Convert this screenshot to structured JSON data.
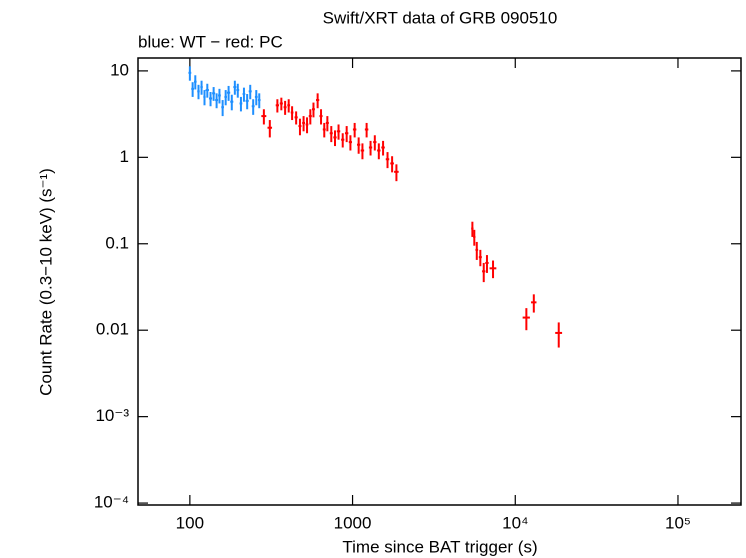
{
  "chart_data": {
    "type": "scatter",
    "title": "Swift/XRT data of GRB 090510",
    "subtitle": "blue: WT − red: PC",
    "x_label": "Time since BAT trigger (s)",
    "y_label": "Count Rate (0.3−10 keV) (s⁻¹)",
    "xscale": "log",
    "yscale": "log",
    "xlim": [
      48,
      244000
    ],
    "ylim": [
      9.5e-05,
      14.1
    ],
    "xticks": [
      100,
      1000,
      {
        "value": 10000,
        "label": "10⁴"
      },
      {
        "value": 100000,
        "label": "10⁵"
      }
    ],
    "yticks": [
      {
        "value": 0.0001,
        "label": "10⁻⁴"
      },
      {
        "value": 0.001,
        "label": "10⁻³"
      },
      0.01,
      0.1,
      1,
      10
    ],
    "series": [
      {
        "name": "WT",
        "color": "#1e8fff",
        "x": [
          100,
          104,
          108,
          113,
          118,
          123,
          128,
          134,
          140,
          146,
          152,
          159,
          166,
          173,
          181,
          189,
          197,
          206,
          215,
          225,
          235,
          245,
          256,
          267
        ],
        "xerr": [
          2,
          2,
          2,
          2,
          2,
          2,
          3,
          3,
          3,
          3,
          3,
          3,
          3,
          4,
          4,
          4,
          4,
          4,
          4,
          5,
          5,
          5,
          5,
          5
        ],
        "values": [
          9.5,
          6.2,
          7.5,
          5.8,
          6.5,
          5.0,
          6.0,
          4.8,
          5.5,
          4.6,
          5.2,
          3.8,
          5.0,
          5.6,
          4.4,
          6.5,
          6.0,
          4.2,
          5.4,
          4.5,
          5.8,
          3.9,
          5.0,
          4.6
        ],
        "yerr": [
          1.8,
          1.2,
          1.4,
          1.1,
          1.2,
          1.0,
          1.1,
          0.9,
          1.0,
          0.9,
          1.0,
          0.8,
          1.0,
          1.1,
          0.9,
          1.2,
          1.1,
          0.8,
          1.0,
          0.9,
          1.1,
          0.8,
          1.0,
          0.9
        ]
      },
      {
        "name": "PC",
        "color": "#ff0000",
        "x": [
          285,
          310,
          345,
          365,
          385,
          405,
          425,
          450,
          475,
          500,
          525,
          550,
          575,
          610,
          640,
          670,
          700,
          740,
          780,
          820,
          870,
          920,
          970,
          1030,
          1090,
          1150,
          1220,
          1290,
          1370,
          1450,
          1540,
          1640,
          1750,
          1860,
          5450,
          5600,
          5800,
          6100,
          6400,
          6700,
          7300,
          11700,
          13000,
          18500
        ],
        "xerr": [
          10,
          10,
          8,
          8,
          8,
          8,
          8,
          10,
          10,
          10,
          10,
          12,
          12,
          14,
          14,
          14,
          15,
          16,
          18,
          20,
          20,
          22,
          22,
          25,
          25,
          28,
          30,
          30,
          32,
          35,
          38,
          40,
          45,
          60,
          90,
          90,
          110,
          130,
          150,
          160,
          350,
          600,
          500,
          900
        ],
        "values": [
          3.0,
          2.2,
          4.0,
          4.2,
          3.8,
          4.0,
          3.3,
          2.9,
          2.3,
          2.5,
          2.4,
          3.0,
          3.6,
          4.6,
          3.0,
          2.1,
          2.5,
          1.9,
          1.7,
          2.0,
          1.6,
          1.9,
          1.5,
          2.1,
          1.4,
          1.2,
          2.1,
          1.3,
          1.5,
          1.2,
          1.3,
          0.95,
          0.85,
          0.68,
          0.15,
          0.12,
          0.085,
          0.07,
          0.048,
          0.06,
          0.052,
          0.014,
          0.021,
          0.0093
        ],
        "yerr": [
          0.6,
          0.5,
          0.7,
          0.7,
          0.7,
          0.7,
          0.6,
          0.5,
          0.5,
          0.5,
          0.5,
          0.6,
          0.7,
          0.9,
          0.6,
          0.4,
          0.5,
          0.4,
          0.35,
          0.4,
          0.3,
          0.4,
          0.3,
          0.4,
          0.3,
          0.25,
          0.4,
          0.25,
          0.3,
          0.25,
          0.25,
          0.2,
          0.18,
          0.15,
          0.03,
          0.025,
          0.02,
          0.015,
          0.012,
          0.014,
          0.012,
          0.004,
          0.005,
          0.003
        ]
      }
    ]
  }
}
